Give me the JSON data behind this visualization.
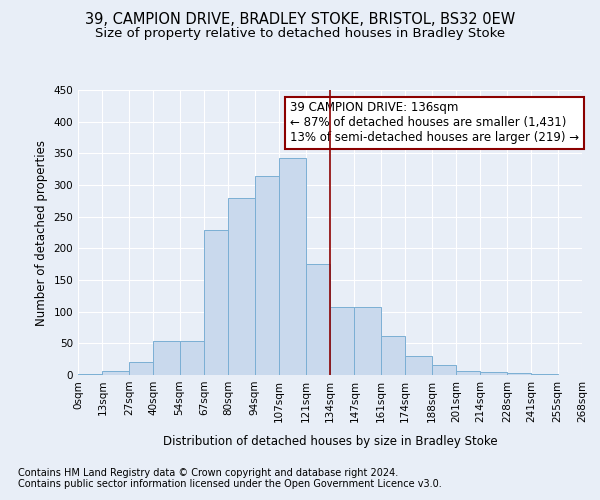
{
  "title": "39, CAMPION DRIVE, BRADLEY STOKE, BRISTOL, BS32 0EW",
  "subtitle": "Size of property relative to detached houses in Bradley Stoke",
  "xlabel": "Distribution of detached houses by size in Bradley Stoke",
  "ylabel": "Number of detached properties",
  "footnote1": "Contains HM Land Registry data © Crown copyright and database right 2024.",
  "footnote2": "Contains public sector information licensed under the Open Government Licence v3.0.",
  "annotation_title": "39 CAMPION DRIVE: 136sqm",
  "annotation_line2": "← 87% of detached houses are smaller (1,431)",
  "annotation_line3": "13% of semi-detached houses are larger (219) →",
  "property_size": 136,
  "bar_labels": [
    "0sqm",
    "13sqm",
    "27sqm",
    "40sqm",
    "54sqm",
    "67sqm",
    "80sqm",
    "94sqm",
    "107sqm",
    "121sqm",
    "134sqm",
    "147sqm",
    "161sqm",
    "174sqm",
    "188sqm",
    "201sqm",
    "214sqm",
    "228sqm",
    "241sqm",
    "255sqm",
    "268sqm"
  ],
  "bar_values": [
    2,
    7,
    20,
    53,
    53,
    229,
    280,
    315,
    343,
    175,
    108,
    108,
    62,
    30,
    16,
    6,
    4,
    3,
    2,
    0,
    2
  ],
  "bin_edges": [
    0,
    13,
    27,
    40,
    54,
    67,
    80,
    94,
    107,
    121,
    134,
    147,
    161,
    174,
    188,
    201,
    214,
    228,
    241,
    255,
    268
  ],
  "bar_color": "#c9d9ed",
  "bar_edge_color": "#7bafd4",
  "vline_color": "#8b0000",
  "vline_x": 134,
  "background_color": "#e8eef7",
  "grid_color": "#ffffff",
  "title_fontsize": 10.5,
  "subtitle_fontsize": 9.5,
  "axis_label_fontsize": 8.5,
  "tick_fontsize": 7.5,
  "annotation_fontsize": 8.5,
  "footnote_fontsize": 7,
  "ylim": [
    0,
    450
  ]
}
